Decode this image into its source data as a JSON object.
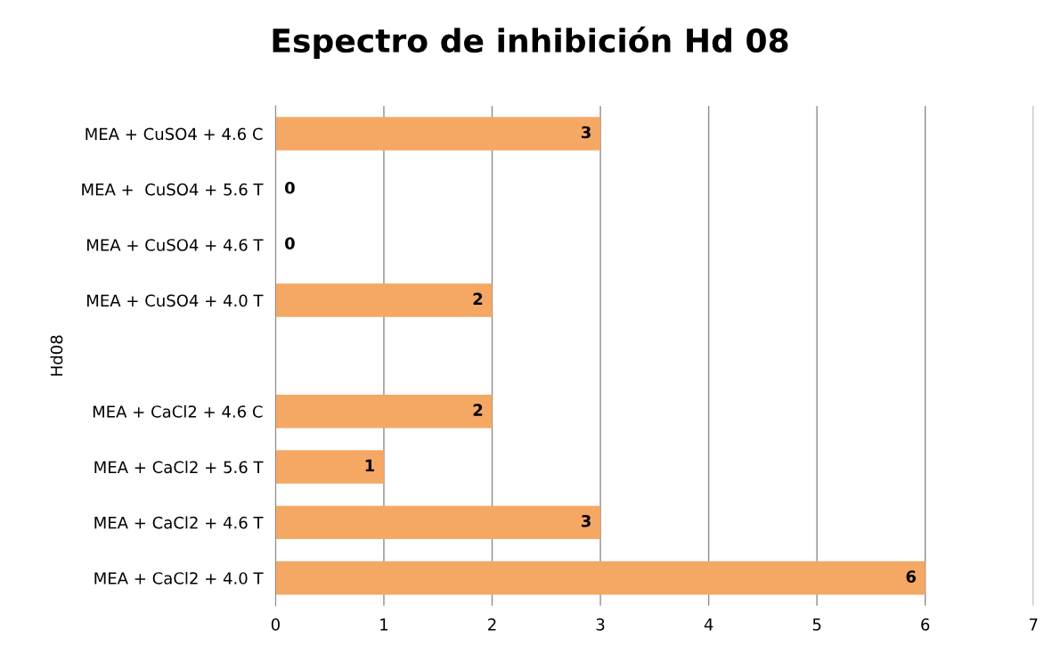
{
  "chart_data": {
    "type": "bar",
    "orientation": "horizontal",
    "title": "Espectro de inhibición Hd 08",
    "ylabel": "Hd08",
    "categories": [
      "MEA + CuSO4 + 4.6 C",
      "MEA +  CuSO4 + 5.6 T",
      "MEA + CuSO4 + 4.6 T",
      "MEA + CuSO4 + 4.0 T",
      null,
      "MEA + CaCl2 + 4.6 C",
      "MEA + CaCl2 + 5.6 T",
      "MEA + CaCl2 + 4.6 T",
      "MEA + CaCl2 + 4.0 T"
    ],
    "values": [
      3,
      0,
      0,
      2,
      null,
      2,
      1,
      3,
      6
    ],
    "color": "#f5a764",
    "xlim": [
      0,
      7
    ],
    "xticks": [
      0,
      1,
      2,
      3,
      4,
      5,
      6,
      7
    ],
    "grid": "x",
    "data_labels": true
  }
}
